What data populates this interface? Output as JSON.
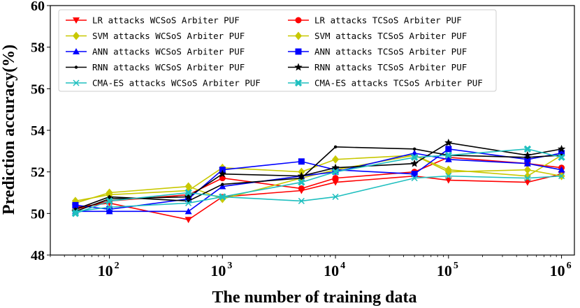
{
  "chart_data": {
    "type": "line",
    "title": "",
    "xlabel": "The number of training data",
    "ylabel": "Prediction accuracy(%)",
    "xscale": "log",
    "xlim": [
      30,
      1300000
    ],
    "ylim": [
      48,
      60
    ],
    "yticks": [
      48,
      50,
      52,
      54,
      56,
      58,
      60
    ],
    "xticks": [
      {
        "value": 100,
        "base": "10",
        "exp": "2"
      },
      {
        "value": 1000,
        "base": "10",
        "exp": "3"
      },
      {
        "value": 10000,
        "base": "10",
        "exp": "4"
      },
      {
        "value": 100000,
        "base": "10",
        "exp": "5"
      },
      {
        "value": 1000000,
        "base": "10",
        "exp": "6"
      }
    ],
    "x": [
      50,
      100,
      500,
      1000,
      5000,
      10000,
      50000,
      100000,
      500000,
      1000000
    ],
    "legend_position": "top-left",
    "series": [
      {
        "name": "LR attacks WCSoS Arbiter PUF",
        "color": "#ff0000",
        "marker": "triangle-down",
        "values": [
          50.3,
          50.5,
          49.7,
          50.8,
          51.1,
          51.5,
          51.8,
          51.6,
          51.5,
          51.9
        ]
      },
      {
        "name": "LR attacks TCSoS Arbiter PUF",
        "color": "#ff0000",
        "marker": "circle",
        "values": [
          50.2,
          50.6,
          50.9,
          51.7,
          51.2,
          51.7,
          52.0,
          52.7,
          52.4,
          52.2
        ]
      },
      {
        "name": "SVM attacks WCSoS Arbiter PUF",
        "color": "#c8c800",
        "marker": "diamond",
        "values": [
          50.6,
          50.9,
          51.1,
          52.2,
          52.0,
          52.6,
          52.8,
          52.0,
          52.1,
          51.8
        ]
      },
      {
        "name": "SVM attacks TCSoS Arbiter PUF",
        "color": "#c8c800",
        "marker": "diamond",
        "values": [
          50.5,
          51.0,
          51.3,
          50.7,
          51.7,
          52.1,
          52.8,
          52.1,
          51.8,
          52.8
        ]
      },
      {
        "name": "ANN attacks WCSoS Arbiter PUF",
        "color": "#0000ff",
        "marker": "triangle-up",
        "values": [
          50.1,
          50.1,
          50.1,
          51.3,
          51.8,
          52.0,
          52.9,
          52.6,
          52.4,
          52.1
        ]
      },
      {
        "name": "ANN attacks TCSoS Arbiter PUF",
        "color": "#0000ff",
        "marker": "square",
        "values": [
          50.4,
          50.2,
          50.7,
          52.1,
          52.5,
          52.1,
          51.9,
          53.1,
          52.6,
          52.9
        ]
      },
      {
        "name": "RNN attacks WCSoS Arbiter PUF",
        "color": "#000000",
        "marker": "point",
        "values": [
          50.2,
          50.8,
          50.6,
          51.4,
          51.7,
          53.2,
          53.1,
          52.8,
          52.7,
          52.8
        ]
      },
      {
        "name": "RNN attacks TCSoS Arbiter PUF",
        "color": "#000000",
        "marker": "star",
        "values": [
          50.1,
          50.7,
          50.8,
          51.9,
          51.8,
          52.2,
          52.4,
          53.4,
          52.8,
          53.1
        ]
      },
      {
        "name": "CMA-ES attacks WCSoS Arbiter PUF",
        "color": "#1fbfbf",
        "marker": "x",
        "values": [
          50.1,
          50.3,
          50.5,
          50.8,
          50.6,
          50.8,
          51.7,
          51.8,
          51.7,
          51.8
        ]
      },
      {
        "name": "CMA-ES attacks TCSoS Arbiter PUF",
        "color": "#1fbfbf",
        "marker": "x-filled",
        "values": [
          50.0,
          50.6,
          51.0,
          50.8,
          51.5,
          52.0,
          52.7,
          52.8,
          53.1,
          52.7
        ]
      }
    ]
  }
}
